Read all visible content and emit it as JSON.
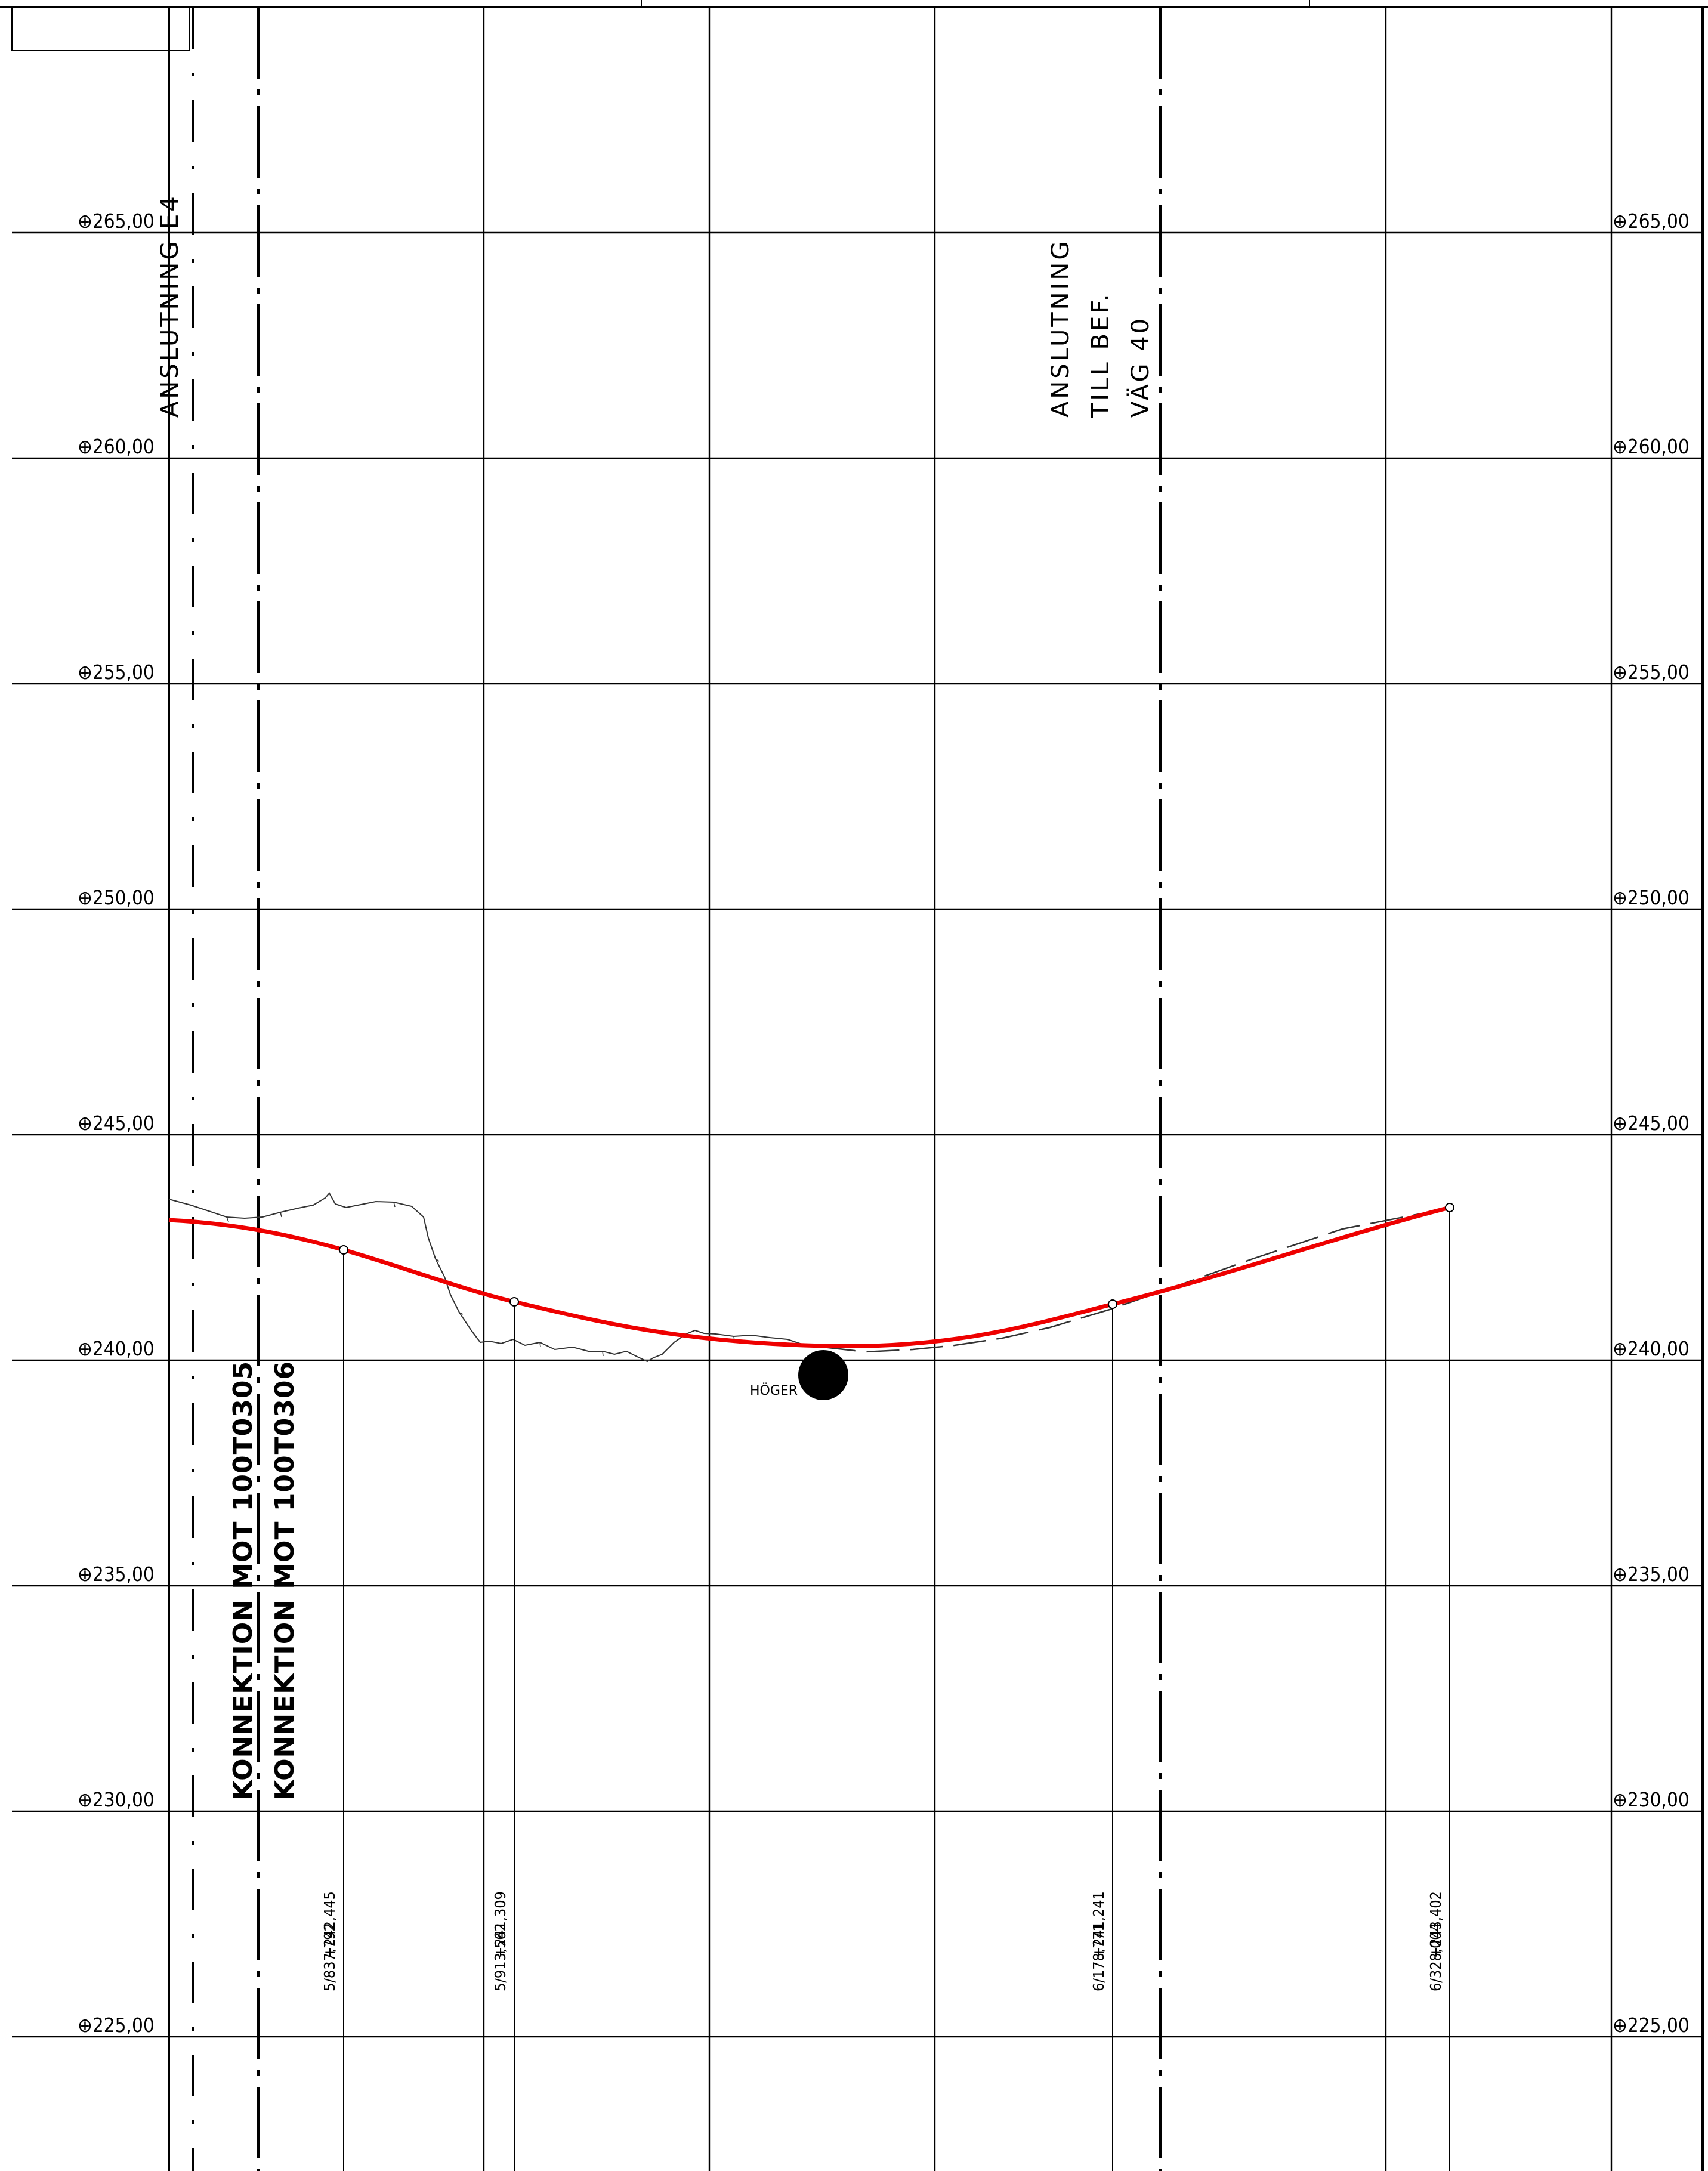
{
  "elevations": [
    "265,00",
    "260,00",
    "255,00",
    "250,00",
    "245,00",
    "240,00",
    "235,00",
    "230,00",
    "225,00"
  ],
  "elevation_marker": "⊕",
  "connection_labels": [
    "KONNEKTION MOT 100T0305",
    "KONNEKTION MOT 100T0306"
  ],
  "connection_top_label": "ANSLUTNING E4",
  "junction_label": [
    "ANSLUTNING",
    "TILL BEF.",
    "VÄG 40"
  ],
  "side_label": "HÖGER",
  "profile_points": [
    {
      "station": "5/837,792",
      "elevation": "+242,445"
    },
    {
      "station": "5/913,562",
      "elevation": "+241,309"
    },
    {
      "station": "6/178,771",
      "elevation": "+241,241"
    },
    {
      "station": "6/328,004",
      "elevation": "+243,402"
    }
  ],
  "colors": {
    "design_line": "#ee0000",
    "grid": "#000000",
    "terrain": "#333333"
  }
}
